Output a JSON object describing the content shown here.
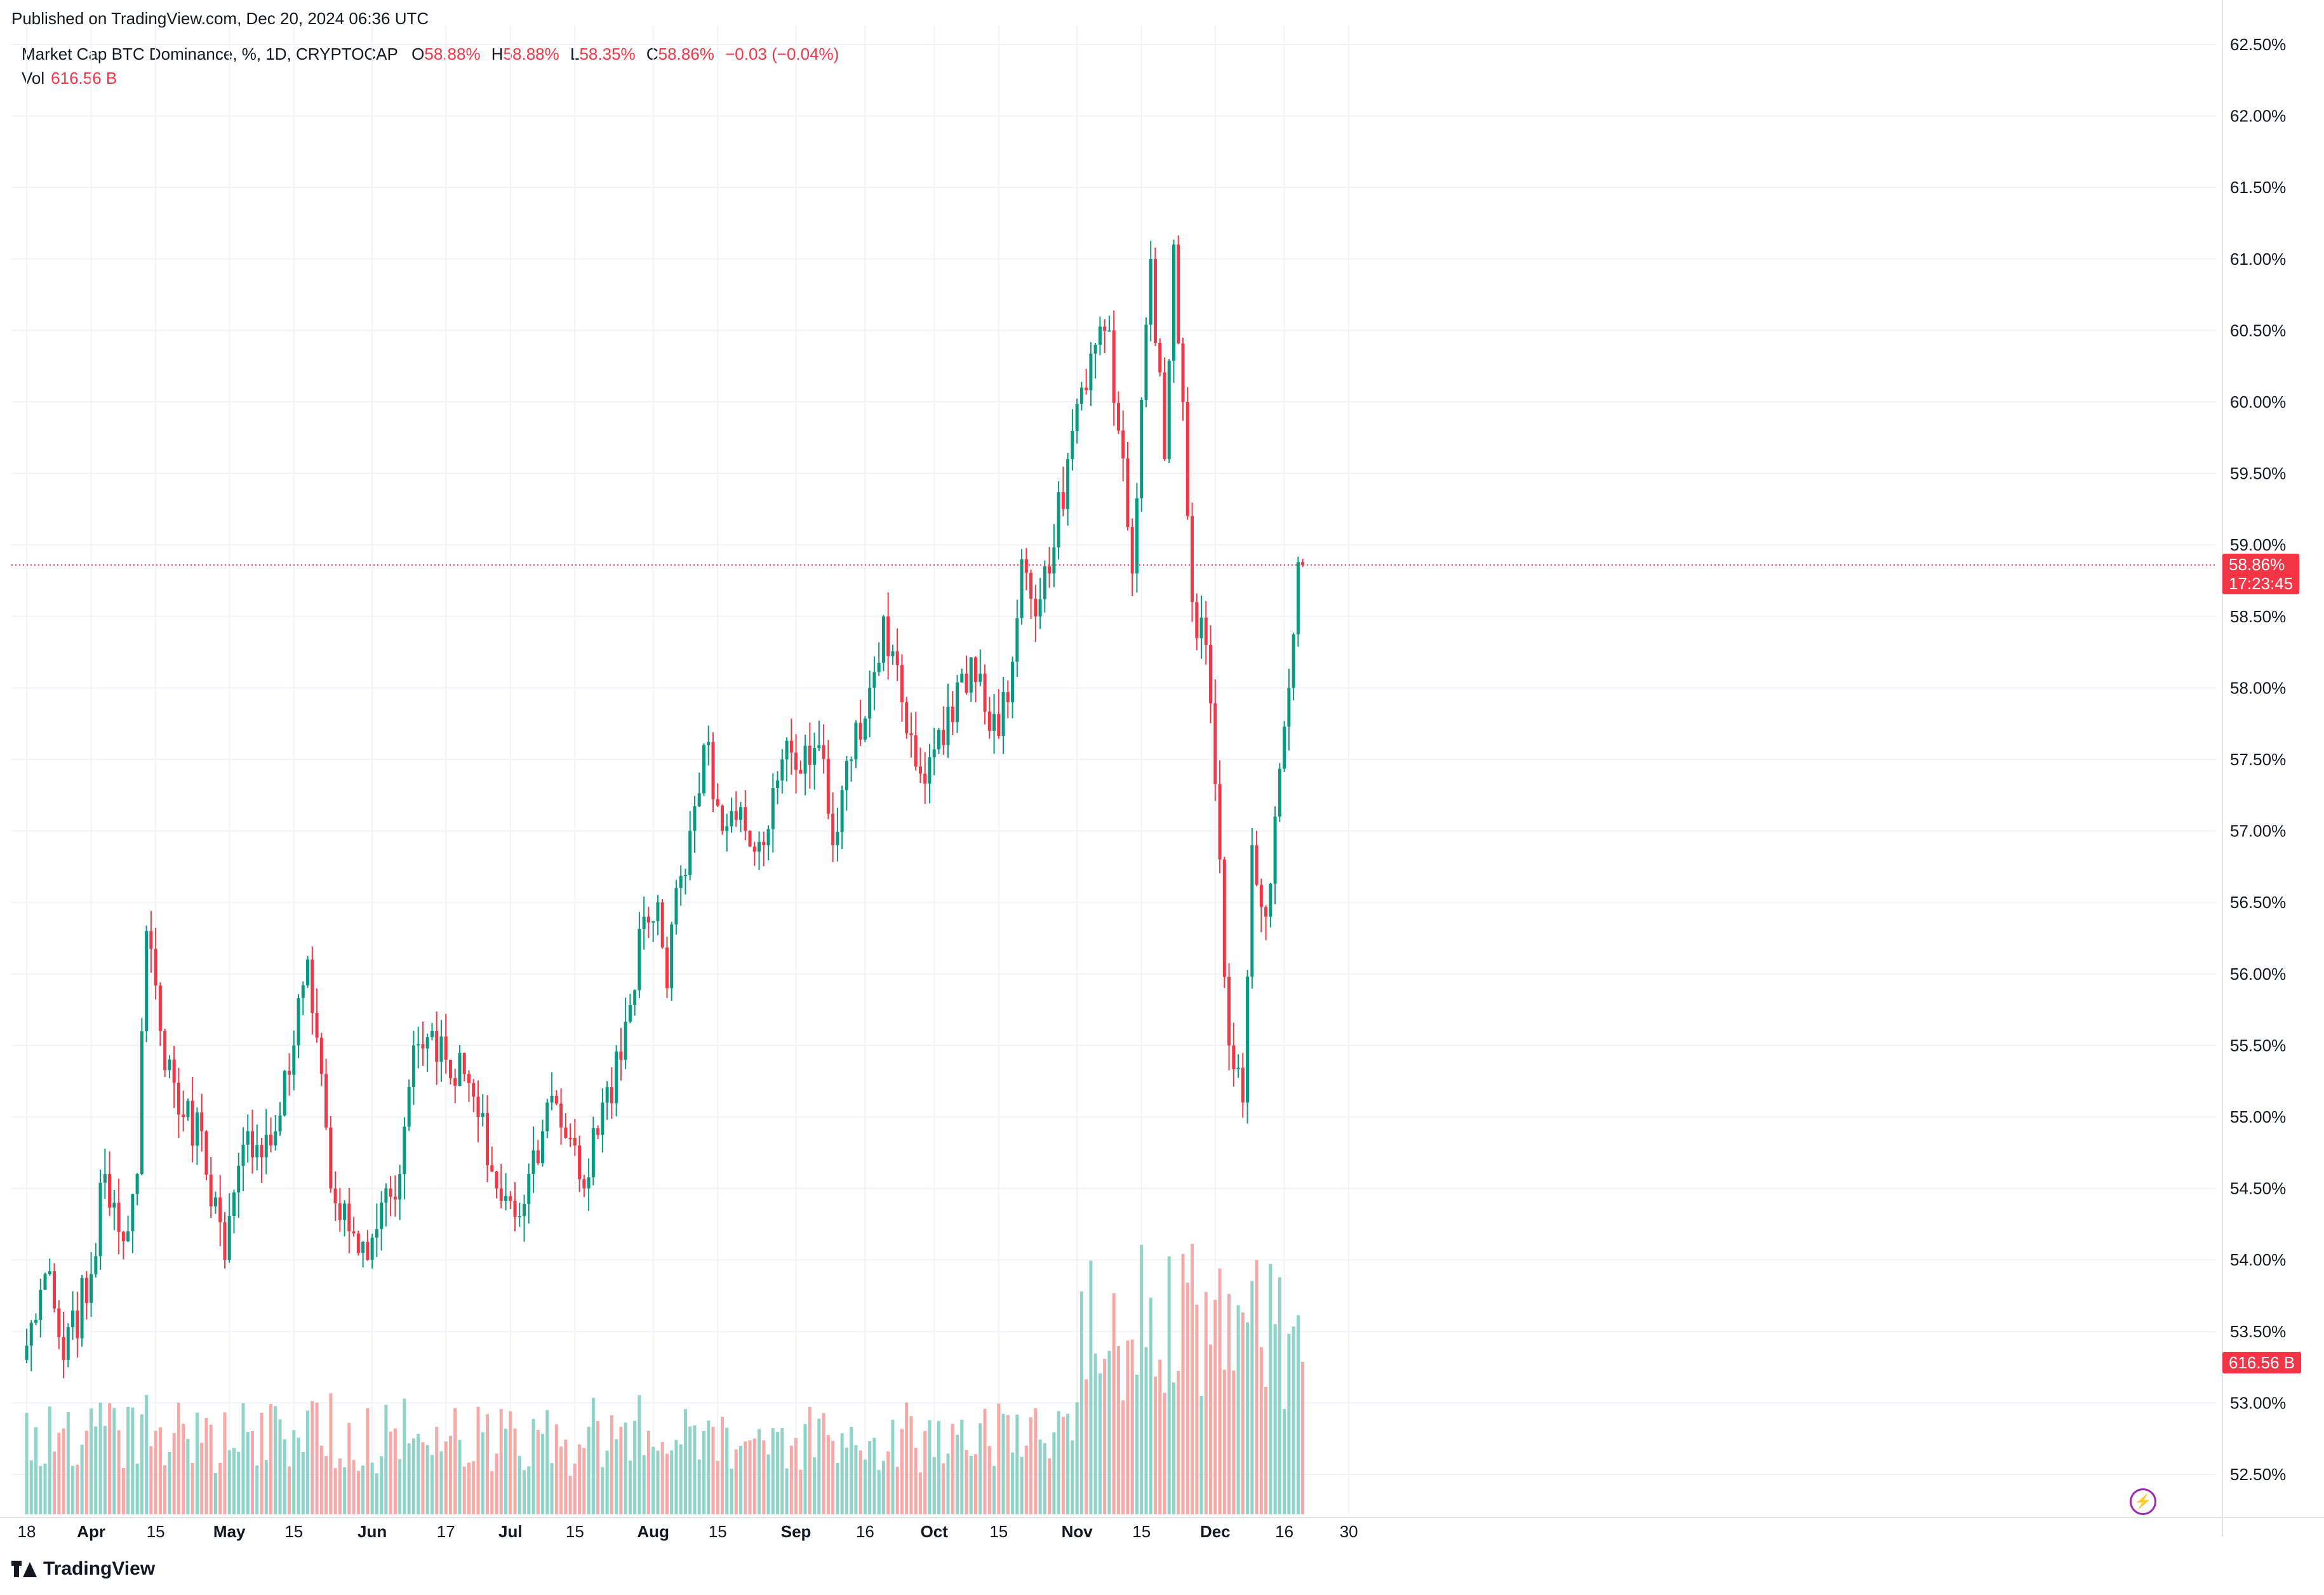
{
  "published": "Published on TradingView.com, Dec 20, 2024 06:36 UTC",
  "legend": {
    "symbol": "Market Cap BTC Dominance, %, 1D, CRYPTOCAP",
    "o_label": "O",
    "o_value": "58.88%",
    "h_label": "H",
    "h_value": "58.88%",
    "l_label": "L",
    "l_value": "58.35%",
    "c_label": "C",
    "c_value": "58.86%",
    "change": "−0.03 (−0.04%)",
    "vol_label": "Vol",
    "vol_value": "616.56 B"
  },
  "price_tag": {
    "value": "58.86%",
    "countdown": "17:23:45"
  },
  "volume_tag": "616.56 B",
  "logo_text": "TradingView",
  "icons": {
    "logo": "tradingview-logo-icon",
    "bolt": "lightning-icon"
  },
  "colors": {
    "up": "#089981",
    "down": "#f23645",
    "vol_up": "#8fd3c9",
    "vol_down": "#f7a9a7",
    "grid": "#f0f3fa"
  },
  "chart_data": {
    "type": "candlestick",
    "title": "Market Cap BTC Dominance, %, 1D, CRYPTOCAP",
    "y_unit": "%",
    "ylim": [
      52.3,
      62.6
    ],
    "grid": true,
    "y_ticks": [
      "62.50%",
      "62.00%",
      "61.50%",
      "61.00%",
      "60.50%",
      "60.00%",
      "59.50%",
      "59.00%",
      "58.50%",
      "58.00%",
      "57.50%",
      "57.00%",
      "56.50%",
      "56.00%",
      "55.50%",
      "55.00%",
      "54.50%",
      "54.00%",
      "53.50%",
      "53.00%",
      "52.50%"
    ],
    "x_ticks": [
      "18",
      "Apr",
      "15",
      "May",
      "15",
      "Jun",
      "17",
      "Jul",
      "15",
      "Aug",
      "15",
      "Sep",
      "16",
      "Oct",
      "15",
      "Nov",
      "15",
      "Dec",
      "16",
      "30"
    ],
    "start_date": "2024-03-18",
    "end_date": "2024-12-20",
    "last_close": 58.86,
    "anchors": [
      [
        "2024-03-18",
        53.4
      ],
      [
        "2024-03-22",
        53.9
      ],
      [
        "2024-03-26",
        53.3
      ],
      [
        "2024-04-01",
        53.9
      ],
      [
        "2024-04-04",
        54.6
      ],
      [
        "2024-04-09",
        54.2
      ],
      [
        "2024-04-11",
        54.6
      ],
      [
        "2024-04-13",
        56.3
      ],
      [
        "2024-04-16",
        55.6
      ],
      [
        "2024-04-21",
        55.0
      ],
      [
        "2024-04-25",
        54.9
      ],
      [
        "2024-04-30",
        54.0
      ],
      [
        "2024-05-05",
        54.9
      ],
      [
        "2024-05-10",
        54.8
      ],
      [
        "2024-05-15",
        55.5
      ],
      [
        "2024-05-18",
        56.1
      ],
      [
        "2024-05-21",
        55.3
      ],
      [
        "2024-05-23",
        54.5
      ],
      [
        "2024-05-27",
        54.2
      ],
      [
        "2024-05-31",
        54.0
      ],
      [
        "2024-06-04",
        54.5
      ],
      [
        "2024-06-07",
        54.6
      ],
      [
        "2024-06-10",
        55.5
      ],
      [
        "2024-06-14",
        55.6
      ],
      [
        "2024-06-17",
        55.4
      ],
      [
        "2024-06-21",
        55.3
      ],
      [
        "2024-06-24",
        55.0
      ],
      [
        "2024-06-28",
        54.5
      ],
      [
        "2024-07-02",
        54.3
      ],
      [
        "2024-07-05",
        54.6
      ],
      [
        "2024-07-09",
        55.1
      ],
      [
        "2024-07-15",
        54.8
      ],
      [
        "2024-07-17",
        54.5
      ],
      [
        "2024-07-21",
        55.1
      ],
      [
        "2024-07-25",
        55.4
      ],
      [
        "2024-07-30",
        56.4
      ],
      [
        "2024-08-02",
        56.5
      ],
      [
        "2024-08-04",
        55.9
      ],
      [
        "2024-08-06",
        56.6
      ],
      [
        "2024-08-09",
        57.0
      ],
      [
        "2024-08-12",
        57.6
      ],
      [
        "2024-08-16",
        57.0
      ],
      [
        "2024-08-21",
        57.0
      ],
      [
        "2024-08-25",
        56.9
      ],
      [
        "2024-08-29",
        57.5
      ],
      [
        "2024-09-02",
        57.4
      ],
      [
        "2024-09-06",
        57.6
      ],
      [
        "2024-09-09",
        56.9
      ],
      [
        "2024-09-13",
        57.5
      ],
      [
        "2024-09-17",
        58.0
      ],
      [
        "2024-09-20",
        58.5
      ],
      [
        "2024-09-24",
        57.9
      ],
      [
        "2024-09-28",
        57.4
      ],
      [
        "2024-10-03",
        57.6
      ],
      [
        "2024-10-07",
        58.1
      ],
      [
        "2024-10-11",
        58.1
      ],
      [
        "2024-10-13",
        57.7
      ],
      [
        "2024-10-17",
        57.9
      ],
      [
        "2024-10-20",
        58.9
      ],
      [
        "2024-10-23",
        58.5
      ],
      [
        "2024-10-26",
        58.8
      ],
      [
        "2024-10-30",
        59.6
      ],
      [
        "2024-11-02",
        60.1
      ],
      [
        "2024-11-05",
        60.4
      ],
      [
        "2024-11-08",
        60.5
      ],
      [
        "2024-11-10",
        59.8
      ],
      [
        "2024-11-13",
        58.8
      ],
      [
        "2024-11-17",
        61.0
      ],
      [
        "2024-11-20",
        59.6
      ],
      [
        "2024-11-22",
        61.1
      ],
      [
        "2024-11-24",
        60.0
      ],
      [
        "2024-11-26",
        58.6
      ],
      [
        "2024-11-29",
        58.3
      ],
      [
        "2024-12-02",
        56.8
      ],
      [
        "2024-12-04",
        55.5
      ],
      [
        "2024-12-07",
        55.1
      ],
      [
        "2024-12-09",
        56.9
      ],
      [
        "2024-12-12",
        56.4
      ],
      [
        "2024-12-14",
        57.1
      ],
      [
        "2024-12-17",
        58.0
      ],
      [
        "2024-12-19",
        58.88
      ],
      [
        "2024-12-20",
        58.86
      ]
    ]
  }
}
